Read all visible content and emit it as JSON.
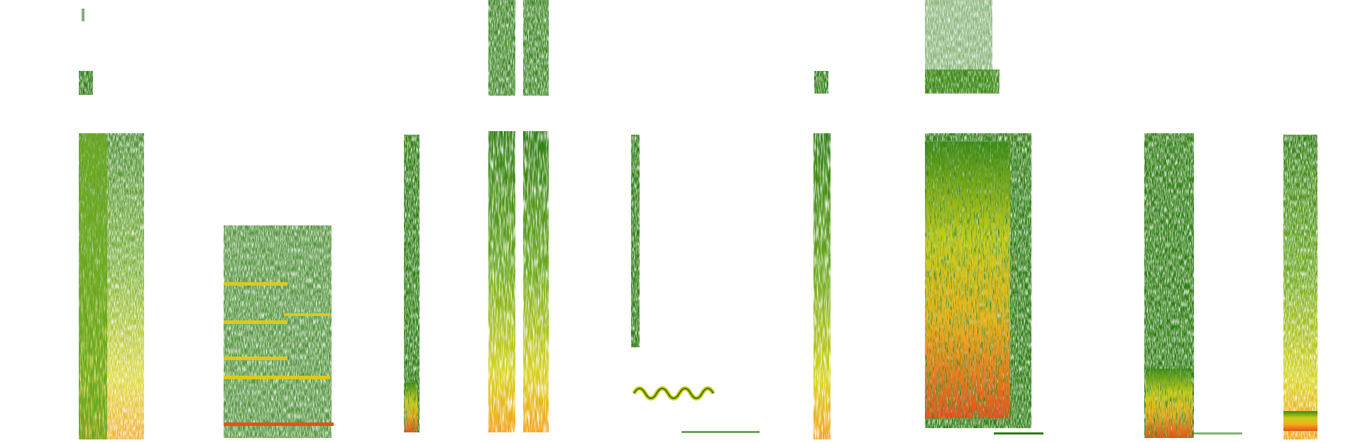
{
  "image": {
    "description_free": true,
    "background": "#ffffff",
    "palette": {
      "low": "#2e7d12",
      "mid": "#6aa81e",
      "high": "#e8d81a",
      "peak": "#f4a11a",
      "max": "#e8501a"
    },
    "clips": [
      {
        "id": "clip-1",
        "intensity": 0.55,
        "style": "tall-sparse"
      },
      {
        "id": "clip-2",
        "intensity": 0.35,
        "style": "box-lines"
      },
      {
        "id": "clip-3",
        "intensity": 0.4,
        "style": "thin-strip"
      },
      {
        "id": "clip-4",
        "intensity": 0.75,
        "style": "dual-columns"
      },
      {
        "id": "clip-5",
        "intensity": 0.45,
        "style": "wavy"
      },
      {
        "id": "clip-6",
        "intensity": 0.5,
        "style": "thin-strip"
      },
      {
        "id": "clip-7",
        "intensity": 0.9,
        "style": "dense-block"
      },
      {
        "id": "clip-8",
        "intensity": 0.7,
        "style": "column"
      },
      {
        "id": "clip-9",
        "intensity": 0.65,
        "style": "column"
      }
    ]
  }
}
